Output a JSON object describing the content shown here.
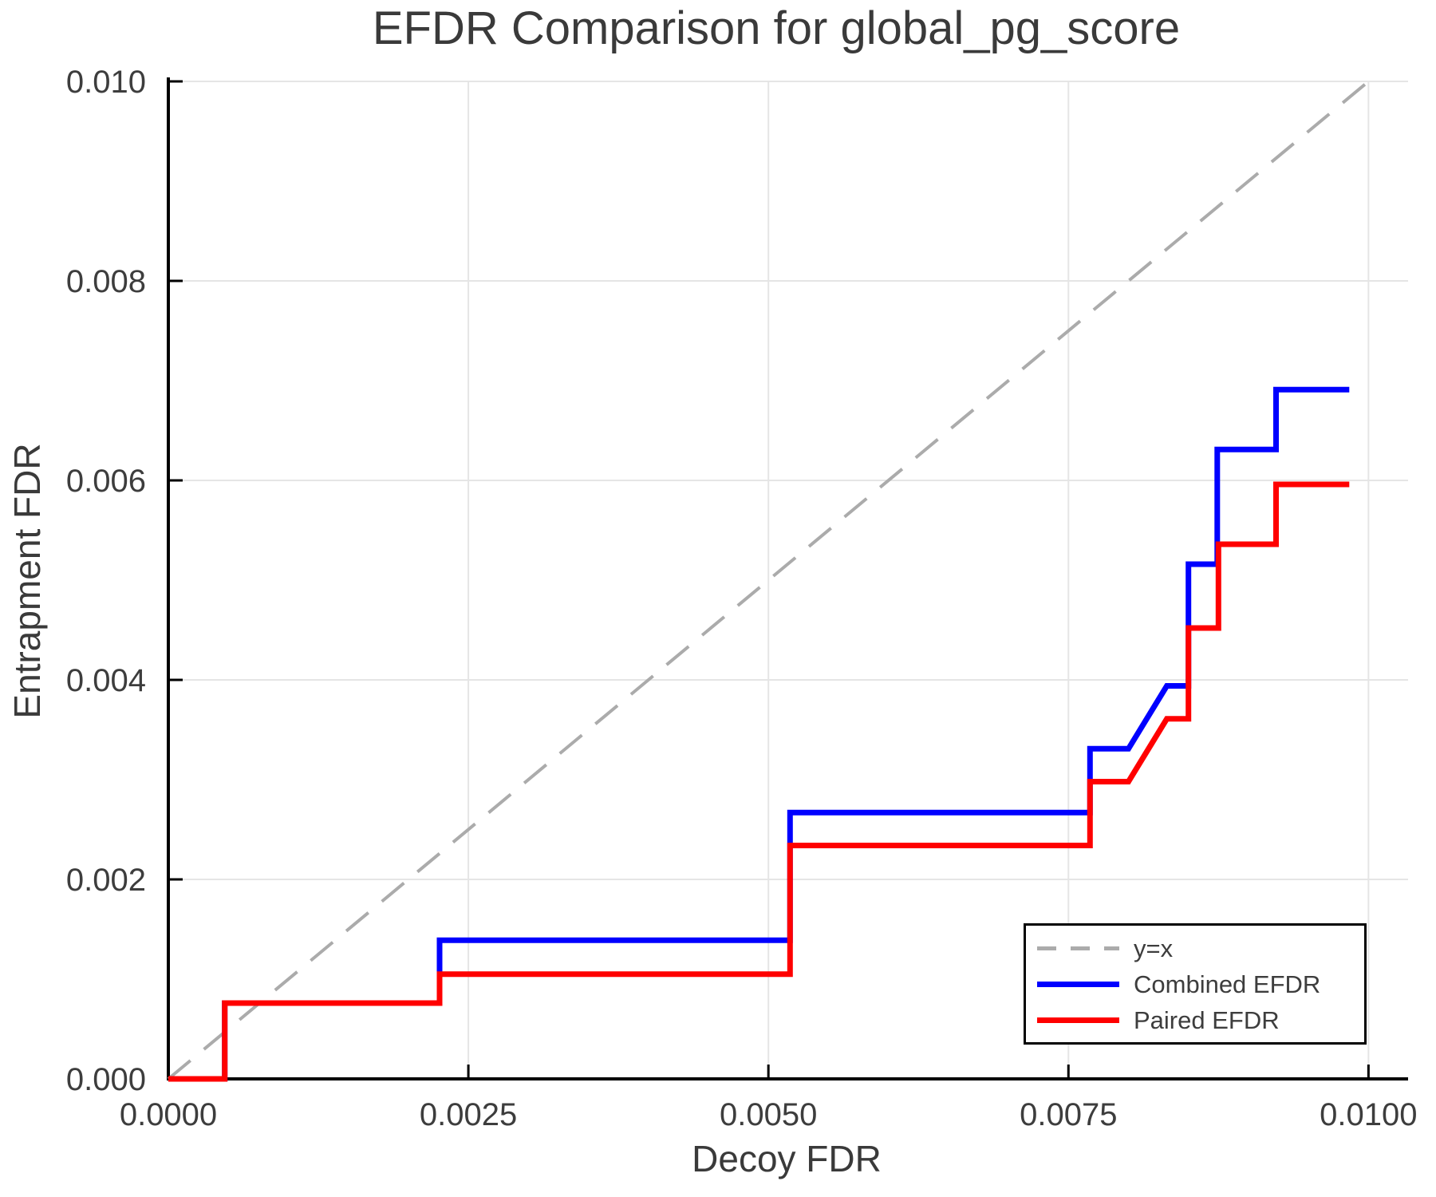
{
  "chart_data": {
    "type": "line",
    "title": "EFDR Comparison for global_pg_score",
    "xlabel": "Decoy FDR",
    "ylabel": "Entrapment FDR",
    "xlim": [
      0,
      0.01033
    ],
    "ylim": [
      0,
      0.01
    ],
    "grid": true,
    "legend_position": "lower right",
    "x_ticks": {
      "values": [
        0,
        0.0025,
        0.005,
        0.0075,
        0.01
      ],
      "labels": [
        "0.0000",
        "0.0025",
        "0.0050",
        "0.0075",
        "0.0100"
      ]
    },
    "y_ticks": {
      "values": [
        0,
        0.002,
        0.004,
        0.006,
        0.008,
        0.01
      ],
      "labels": [
        "0.000",
        "0.002",
        "0.004",
        "0.006",
        "0.008",
        "0.010"
      ]
    },
    "series": [
      {
        "name": "y=x",
        "color": "#ABABAB",
        "dash": true,
        "width": 4,
        "points": [
          [
            0,
            0
          ],
          [
            0.01,
            0.01
          ]
        ]
      },
      {
        "name": "Combined EFDR",
        "color": "#0000FF",
        "dash": false,
        "width": 7,
        "points": [
          [
            0,
            0
          ],
          [
            0.00047,
            0
          ],
          [
            0.00047,
            0.00076
          ],
          [
            0.00226,
            0.00076
          ],
          [
            0.00226,
            0.00139
          ],
          [
            0.00518,
            0.00139
          ],
          [
            0.00518,
            0.00267
          ],
          [
            0.00768,
            0.00267
          ],
          [
            0.00768,
            0.00331
          ],
          [
            0.008,
            0.00331
          ],
          [
            0.00832,
            0.00394
          ],
          [
            0.0085,
            0.00394
          ],
          [
            0.0085,
            0.00516
          ],
          [
            0.00874,
            0.00516
          ],
          [
            0.00874,
            0.00631
          ],
          [
            0.00923,
            0.00631
          ],
          [
            0.00923,
            0.00691
          ],
          [
            0.00984,
            0.00691
          ]
        ]
      },
      {
        "name": "Paired EFDR",
        "color": "#FF0000",
        "dash": false,
        "width": 7,
        "points": [
          [
            0,
            0
          ],
          [
            0.00047,
            0
          ],
          [
            0.00047,
            0.00076
          ],
          [
            0.00226,
            0.00076
          ],
          [
            0.00226,
            0.00105
          ],
          [
            0.00518,
            0.00105
          ],
          [
            0.00518,
            0.00234
          ],
          [
            0.00768,
            0.00234
          ],
          [
            0.00768,
            0.00298
          ],
          [
            0.008,
            0.00298
          ],
          [
            0.00832,
            0.00361
          ],
          [
            0.0085,
            0.00361
          ],
          [
            0.0085,
            0.00452
          ],
          [
            0.00875,
            0.00452
          ],
          [
            0.00875,
            0.00536
          ],
          [
            0.00923,
            0.00536
          ],
          [
            0.00923,
            0.00596
          ],
          [
            0.00984,
            0.00596
          ]
        ]
      }
    ]
  },
  "colors": {
    "background": "#FFFFFF",
    "grid": "#E5E5E5",
    "spine": "#000000",
    "tick": "#000000",
    "text": "#3D3D3D",
    "legend_border": "#000000"
  }
}
